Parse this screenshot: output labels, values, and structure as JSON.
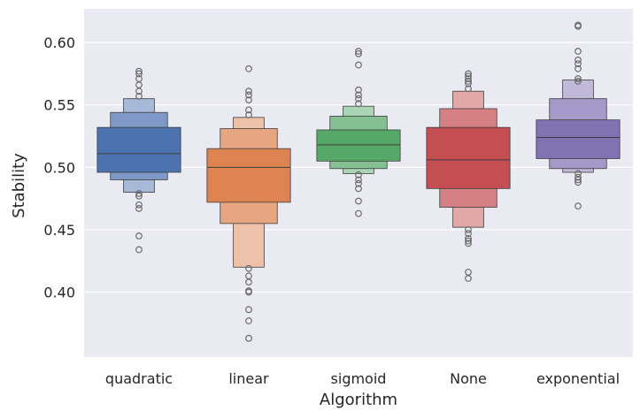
{
  "chart_data": {
    "type": "boxen",
    "title": "",
    "xlabel": "Algorithm",
    "ylabel": "Stability",
    "ylim": [
      0.348,
      0.627
    ],
    "yticks": [
      0.4,
      0.45,
      0.5,
      0.55,
      0.6
    ],
    "ytick_labels": [
      "0.40",
      "0.45",
      "0.50",
      "0.55",
      "0.60"
    ],
    "grid": true,
    "categories": [
      "quadratic",
      "linear",
      "sigmoid",
      "None",
      "exponential"
    ],
    "colors": [
      "#4c72b0",
      "#dd8452",
      "#55a868",
      "#c44e52",
      "#8172b3"
    ],
    "series": [
      {
        "name": "quadratic",
        "median": 0.511,
        "levels": [
          [
            0.496,
            0.532
          ],
          [
            0.49,
            0.544
          ],
          [
            0.48,
            0.555
          ]
        ],
        "outliers": [
          0.577,
          0.575,
          0.571,
          0.566,
          0.561,
          0.557,
          0.479,
          0.477,
          0.47,
          0.467,
          0.445,
          0.434
        ]
      },
      {
        "name": "linear",
        "median": 0.5,
        "levels": [
          [
            0.472,
            0.515
          ],
          [
            0.455,
            0.531
          ],
          [
            0.42,
            0.54
          ]
        ],
        "outliers": [
          0.579,
          0.561,
          0.558,
          0.554,
          0.546,
          0.542,
          0.419,
          0.413,
          0.408,
          0.401,
          0.4,
          0.386,
          0.377,
          0.363
        ]
      },
      {
        "name": "sigmoid",
        "median": 0.518,
        "levels": [
          [
            0.505,
            0.53
          ],
          [
            0.499,
            0.541
          ],
          [
            0.495,
            0.549
          ]
        ],
        "outliers": [
          0.593,
          0.591,
          0.582,
          0.562,
          0.558,
          0.555,
          0.551,
          0.494,
          0.49,
          0.487,
          0.483,
          0.473,
          0.463
        ]
      },
      {
        "name": "None",
        "median": 0.506,
        "levels": [
          [
            0.483,
            0.532
          ],
          [
            0.468,
            0.547
          ],
          [
            0.452,
            0.561
          ]
        ],
        "outliers": [
          0.575,
          0.573,
          0.571,
          0.569,
          0.567,
          0.563,
          0.45,
          0.447,
          0.443,
          0.441,
          0.439,
          0.416,
          0.411
        ]
      },
      {
        "name": "exponential",
        "median": 0.524,
        "levels": [
          [
            0.507,
            0.538
          ],
          [
            0.499,
            0.555
          ],
          [
            0.496,
            0.57
          ]
        ],
        "outliers": [
          0.614,
          0.613,
          0.593,
          0.586,
          0.583,
          0.579,
          0.571,
          0.569,
          0.495,
          0.492,
          0.49,
          0.488,
          0.469
        ]
      }
    ]
  }
}
